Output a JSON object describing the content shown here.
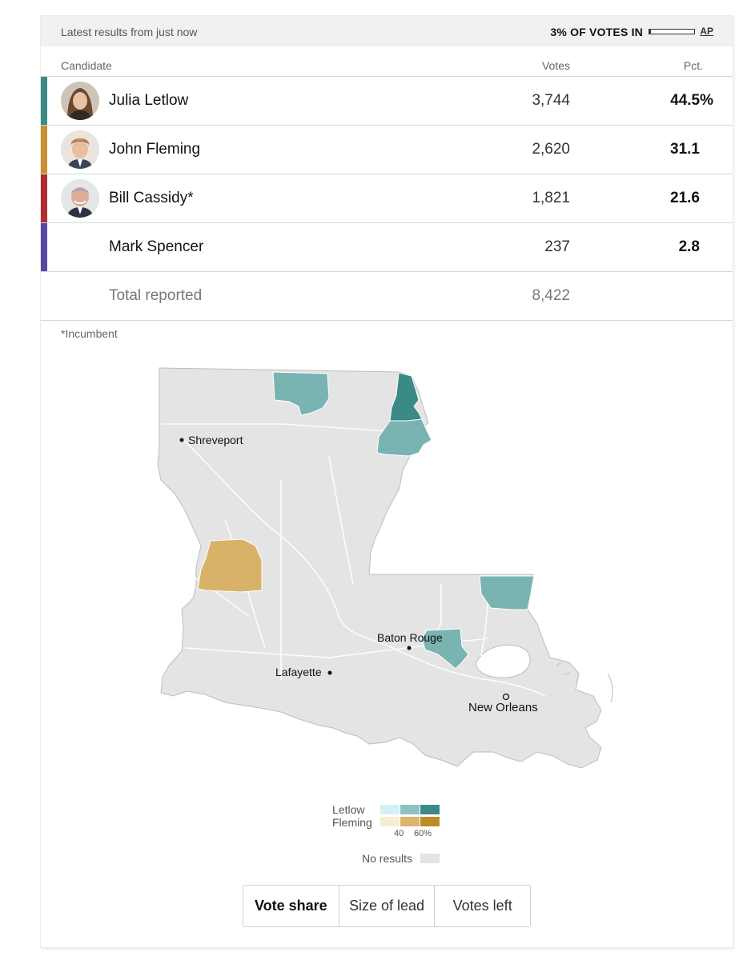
{
  "header": {
    "latest": "Latest results from just now",
    "votes_in": "3% OF VOTES IN",
    "votes_in_fraction": 0.03,
    "source": "AP"
  },
  "columns": {
    "candidate": "Candidate",
    "votes": "Votes",
    "pct": "Pct."
  },
  "candidates": [
    {
      "name": "Julia Letlow",
      "votes": "3,744",
      "pct": "44.5%",
      "color": "#3a8a88"
    },
    {
      "name": "John Fleming",
      "votes": "2,620",
      "pct": "31.1",
      "color": "#c9902f"
    },
    {
      "name": "Bill Cassidy*",
      "votes": "1,821",
      "pct": "21.6",
      "color": "#b22a32"
    },
    {
      "name": "Mark Spencer",
      "votes": "237",
      "pct": "2.8",
      "color": "#5a47a5"
    }
  ],
  "total": {
    "label": "Total reported",
    "votes": "8,422"
  },
  "footnote": "*Incumbent",
  "map": {
    "cities": [
      "Shreveport",
      "Baton Rouge",
      "Lafayette",
      "New Orleans"
    ],
    "colors": {
      "no_results": "#e4e4e4",
      "letlow_lead": "#7ab4b2",
      "letlow_strong": "#3a8a88",
      "fleming_lead": "#d9b26a"
    }
  },
  "legend": {
    "rows": [
      {
        "label": "Letlow",
        "colors": [
          "#d3f1f3",
          "#8ec2c2",
          "#3a8a88"
        ]
      },
      {
        "label": "Fleming",
        "colors": [
          "#f6eed1",
          "#dbb56e",
          "#c08a26"
        ]
      }
    ],
    "ticks": [
      "40",
      "60%"
    ],
    "no_results": "No results"
  },
  "toggle": {
    "options": [
      "Vote share",
      "Size of lead",
      "Votes left"
    ],
    "active": "Vote share"
  }
}
